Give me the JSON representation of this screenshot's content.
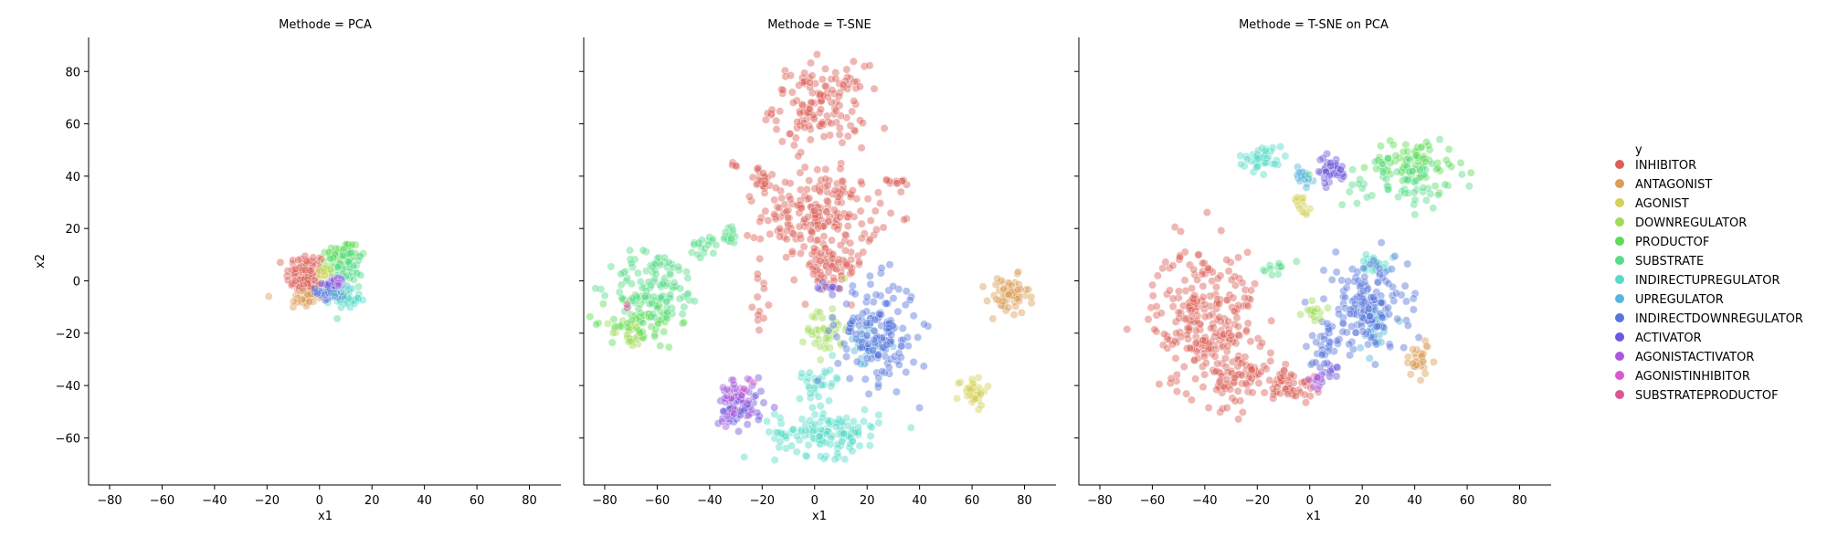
{
  "figure": {
    "ylabel": "x2",
    "legend": {
      "title": "y",
      "placement": "right",
      "entries": [
        {
          "label": "INHIBITOR",
          "color": "#db5f57"
        },
        {
          "label": "ANTAGONIST",
          "color": "#db9e57"
        },
        {
          "label": "AGONIST",
          "color": "#d3d157"
        },
        {
          "label": "DOWNREGULATOR",
          "color": "#a0db57"
        },
        {
          "label": "PRODUCTOF",
          "color": "#5edb57"
        },
        {
          "label": "SUBSTRATE",
          "color": "#57db8a"
        },
        {
          "label": "INDIRECTUPREGULATOR",
          "color": "#57dbc8"
        },
        {
          "label": "UPREGULATOR",
          "color": "#57b4db"
        },
        {
          "label": "INDIRECTDOWNREGULATOR",
          "color": "#5775db"
        },
        {
          "label": "ACTIVATOR",
          "color": "#6d57db"
        },
        {
          "label": "AGONISTACTIVATOR",
          "color": "#ac57db"
        },
        {
          "label": "AGONISTINHIBITOR",
          "color": "#db57d1"
        },
        {
          "label": "SUBSTRATEPRODUCTOF",
          "color": "#db5793"
        }
      ]
    }
  },
  "chart_data": [
    {
      "type": "scatter",
      "title": "Methode = PCA",
      "xlabel": "x1",
      "ylabel": "x2",
      "xlim": [
        -88,
        92
      ],
      "ylim": [
        -78,
        93
      ],
      "xticks": [
        -80,
        -60,
        -40,
        -20,
        0,
        20,
        40,
        60,
        80
      ],
      "yticks": [
        -60,
        -40,
        -20,
        0,
        20,
        40,
        60,
        80
      ],
      "clusters": [
        {
          "series": "INHIBITOR",
          "cx": -5,
          "cy": 2,
          "rx": 7,
          "ry": 8,
          "n": 90
        },
        {
          "series": "ANTAGONIST",
          "cx": -6,
          "cy": -7,
          "rx": 6,
          "ry": 4,
          "n": 25
        },
        {
          "series": "PRODUCTOF",
          "cx": 9,
          "cy": 10,
          "rx": 6,
          "ry": 5,
          "n": 60
        },
        {
          "series": "SUBSTRATE",
          "cx": 11,
          "cy": 4,
          "rx": 5,
          "ry": 8,
          "n": 45
        },
        {
          "series": "INDIRECTUPREGULATOR",
          "cx": 10,
          "cy": -7,
          "rx": 5,
          "ry": 3,
          "n": 35
        },
        {
          "series": "INDIRECTDOWNREGULATOR",
          "cx": 4,
          "cy": -4,
          "rx": 5,
          "ry": 4,
          "n": 30
        },
        {
          "series": "ACTIVATOR",
          "cx": 5,
          "cy": -1,
          "rx": 3,
          "ry": 2,
          "n": 12
        },
        {
          "series": "UPREGULATOR",
          "cx": 7,
          "cy": -2,
          "rx": 3,
          "ry": 3,
          "n": 10
        },
        {
          "series": "AGONISTACTIVATOR",
          "cx": 7,
          "cy": 0,
          "rx": 2,
          "ry": 2,
          "n": 6
        },
        {
          "series": "DOWNREGULATOR",
          "cx": 3,
          "cy": 5,
          "rx": 3,
          "ry": 3,
          "n": 10
        },
        {
          "series": "AGONIST",
          "cx": 1,
          "cy": 2,
          "rx": 2,
          "ry": 2,
          "n": 6
        }
      ]
    },
    {
      "type": "scatter",
      "title": "Methode = T-SNE",
      "xlabel": "x1",
      "ylabel": "",
      "xlim": [
        -88,
        92
      ],
      "ylim": [
        -78,
        93
      ],
      "xticks": [
        -80,
        -60,
        -40,
        -20,
        0,
        20,
        40,
        60,
        80
      ],
      "yticks": [
        -60,
        -40,
        -20,
        0,
        20,
        40,
        60,
        80
      ],
      "clusters": [
        {
          "series": "INHIBITOR",
          "cx": 2,
          "cy": 67,
          "rx": 16,
          "ry": 14,
          "n": 140
        },
        {
          "series": "INHIBITOR",
          "cx": 2,
          "cy": 25,
          "rx": 20,
          "ry": 16,
          "n": 200
        },
        {
          "series": "INHIBITOR",
          "cx": 5,
          "cy": 4,
          "rx": 12,
          "ry": 8,
          "n": 60
        },
        {
          "series": "INHIBITOR",
          "cx": -20,
          "cy": 38,
          "rx": 5,
          "ry": 5,
          "n": 20
        },
        {
          "series": "INHIBITOR",
          "cx": 30,
          "cy": 38,
          "rx": 5,
          "ry": 4,
          "n": 12
        },
        {
          "series": "INHIBITOR",
          "cx": -20,
          "cy": -8,
          "rx": 3,
          "ry": 8,
          "n": 12
        },
        {
          "series": "INHIBITOR",
          "cx": -30,
          "cy": 44,
          "rx": 2,
          "ry": 2,
          "n": 4
        },
        {
          "series": "ANTAGONIST",
          "cx": 74,
          "cy": -6,
          "rx": 7,
          "ry": 7,
          "n": 60
        },
        {
          "series": "AGONIST",
          "cx": 60,
          "cy": -42,
          "rx": 5,
          "ry": 5,
          "n": 40
        },
        {
          "series": "DOWNREGULATOR",
          "cx": 5,
          "cy": -18,
          "rx": 7,
          "ry": 10,
          "n": 40
        },
        {
          "series": "DOWNREGULATOR",
          "cx": -70,
          "cy": -20,
          "rx": 7,
          "ry": 5,
          "n": 30
        },
        {
          "series": "PRODUCTOF",
          "cx": -65,
          "cy": -15,
          "rx": 12,
          "ry": 10,
          "n": 60
        },
        {
          "series": "SUBSTRATE",
          "cx": -60,
          "cy": -2,
          "rx": 16,
          "ry": 12,
          "n": 110
        },
        {
          "series": "SUBSTRATE",
          "cx": -42,
          "cy": 13,
          "rx": 5,
          "ry": 4,
          "n": 18
        },
        {
          "series": "SUBSTRATE",
          "cx": -33,
          "cy": 18,
          "rx": 5,
          "ry": 4,
          "n": 15
        },
        {
          "series": "INDIRECTUPREGULATOR",
          "cx": 5,
          "cy": -58,
          "rx": 18,
          "ry": 8,
          "n": 130
        },
        {
          "series": "INDIRECTUPREGULATOR",
          "cx": 2,
          "cy": -37,
          "rx": 8,
          "ry": 6,
          "n": 30
        },
        {
          "series": "UPREGULATOR",
          "cx": 20,
          "cy": -25,
          "rx": 8,
          "ry": 8,
          "n": 40
        },
        {
          "series": "INDIRECTDOWNREGULATOR",
          "cx": 24,
          "cy": -20,
          "rx": 14,
          "ry": 18,
          "n": 160
        },
        {
          "series": "ACTIVATOR",
          "cx": -28,
          "cy": -48,
          "rx": 8,
          "ry": 8,
          "n": 60
        },
        {
          "series": "ACTIVATOR",
          "cx": 5,
          "cy": -3,
          "rx": 4,
          "ry": 3,
          "n": 10
        },
        {
          "series": "AGONISTACTIVATOR",
          "cx": -30,
          "cy": -44,
          "rx": 6,
          "ry": 8,
          "n": 30
        },
        {
          "series": "AGONISTINHIBITOR",
          "cx": -25,
          "cy": -40,
          "rx": 3,
          "ry": 3,
          "n": 4
        },
        {
          "series": "SUBSTRATEPRODUCTOF",
          "cx": -72,
          "cy": -10,
          "rx": 1,
          "ry": 1,
          "n": 2
        }
      ]
    },
    {
      "type": "scatter",
      "title": "Methode = T-SNE on PCA",
      "xlabel": "x1",
      "ylabel": "",
      "xlim": [
        -88,
        92
      ],
      "ylim": [
        -78,
        93
      ],
      "xticks": [
        -80,
        -60,
        -40,
        -20,
        0,
        20,
        40,
        60,
        80
      ],
      "yticks": [
        -60,
        -40,
        -20,
        0,
        20,
        40,
        60,
        80
      ],
      "clusters": [
        {
          "series": "INHIBITOR",
          "cx": -40,
          "cy": -15,
          "rx": 18,
          "ry": 26,
          "n": 260
        },
        {
          "series": "INHIBITOR",
          "cx": -25,
          "cy": -37,
          "rx": 10,
          "ry": 8,
          "n": 60
        },
        {
          "series": "INHIBITOR",
          "cx": -7,
          "cy": -40,
          "rx": 8,
          "ry": 6,
          "n": 50
        },
        {
          "series": "INDIRECTUPREGULATOR",
          "cx": -18,
          "cy": 47,
          "rx": 8,
          "ry": 4,
          "n": 40
        },
        {
          "series": "INDIRECTUPREGULATOR",
          "cx": 25,
          "cy": 7,
          "rx": 5,
          "ry": 3,
          "n": 20
        },
        {
          "series": "UPREGULATOR",
          "cx": -3,
          "cy": 40,
          "rx": 4,
          "ry": 5,
          "n": 20
        },
        {
          "series": "UPREGULATOR",
          "cx": 25,
          "cy": -18,
          "rx": 6,
          "ry": 8,
          "n": 30
        },
        {
          "series": "ACTIVATOR",
          "cx": 8,
          "cy": 42,
          "rx": 6,
          "ry": 5,
          "n": 40
        },
        {
          "series": "ACTIVATOR",
          "cx": 8,
          "cy": -35,
          "rx": 4,
          "ry": 3,
          "n": 15
        },
        {
          "series": "AGONIST",
          "cx": -3,
          "cy": 30,
          "rx": 3,
          "ry": 4,
          "n": 15
        },
        {
          "series": "PRODUCTOF",
          "cx": 40,
          "cy": 45,
          "rx": 15,
          "ry": 8,
          "n": 80
        },
        {
          "series": "SUBSTRATE",
          "cx": 35,
          "cy": 38,
          "rx": 20,
          "ry": 10,
          "n": 60
        },
        {
          "series": "SUBSTRATE",
          "cx": -13,
          "cy": 5,
          "rx": 4,
          "ry": 2,
          "n": 12
        },
        {
          "series": "INDIRECTDOWNREGULATOR",
          "cx": 22,
          "cy": -10,
          "rx": 14,
          "ry": 16,
          "n": 160
        },
        {
          "series": "INDIRECTDOWNREGULATOR",
          "cx": 5,
          "cy": -25,
          "rx": 6,
          "ry": 8,
          "n": 30
        },
        {
          "series": "ANTAGONIST",
          "cx": 42,
          "cy": -30,
          "rx": 6,
          "ry": 6,
          "n": 30
        },
        {
          "series": "DOWNREGULATOR",
          "cx": 2,
          "cy": -12,
          "rx": 4,
          "ry": 4,
          "n": 15
        },
        {
          "series": "AGONISTACTIVATOR",
          "cx": 2,
          "cy": -38,
          "rx": 3,
          "ry": 3,
          "n": 8
        }
      ]
    }
  ]
}
